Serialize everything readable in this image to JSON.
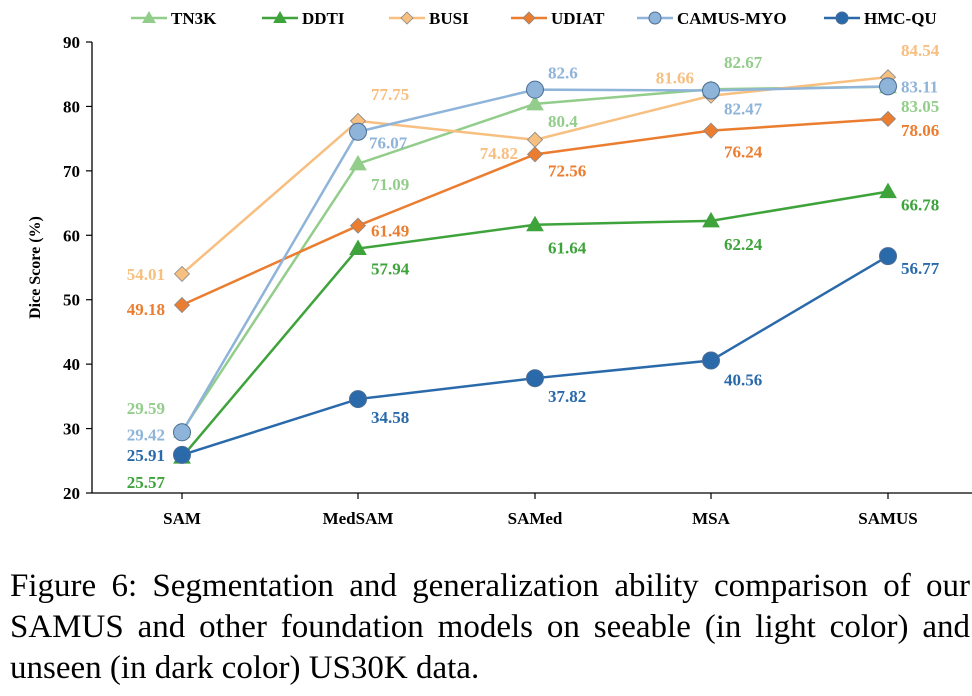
{
  "caption": "Figure 6: Segmentation and generalization ability comparison of our SAMUS and other foundation models on seeable (in light color) and unseen (in dark color) US30K data.",
  "chart_data": {
    "type": "line",
    "title": "",
    "xlabel": "",
    "ylabel": "Dice Score (%)",
    "ylim": [
      20,
      90
    ],
    "yticks": [
      20,
      30,
      40,
      50,
      60,
      70,
      80,
      90
    ],
    "grid": false,
    "legend_position": "top",
    "categories": [
      "SAM",
      "MedSAM",
      "SAMed",
      "MSA",
      "SAMUS"
    ],
    "series": [
      {
        "name": "TN3K",
        "color": "#93cd8b",
        "marker": "triangle",
        "values": [
          29.59,
          71.09,
          80.4,
          82.67,
          83.05
        ],
        "labels": [
          "29.59",
          "71.09",
          "80.4",
          "82.67",
          "83.05"
        ]
      },
      {
        "name": "DDTI",
        "color": "#3ea33b",
        "marker": "triangle",
        "values": [
          25.57,
          57.94,
          61.64,
          62.24,
          66.78
        ],
        "labels": [
          "25.57",
          "57.94",
          "61.64",
          "62.24",
          "66.78"
        ]
      },
      {
        "name": "BUSI",
        "color": "#f7bf80",
        "marker": "diamond",
        "values": [
          54.01,
          77.75,
          74.82,
          81.66,
          84.54
        ],
        "labels": [
          "54.01",
          "77.75",
          "74.82",
          "81.66",
          "84.54"
        ]
      },
      {
        "name": "UDIAT",
        "color": "#eb7d30",
        "marker": "diamond",
        "values": [
          49.18,
          61.49,
          72.56,
          76.24,
          78.06
        ],
        "labels": [
          "49.18",
          "61.49",
          "72.56",
          "76.24",
          "78.06"
        ]
      },
      {
        "name": "CAMUS-MYO",
        "color": "#8fb4da",
        "marker": "circle",
        "values": [
          29.42,
          76.07,
          82.6,
          82.47,
          83.11
        ],
        "labels": [
          "29.42",
          "76.07",
          "82.6",
          "82.47",
          "83.11"
        ]
      },
      {
        "name": "HMC-QU",
        "color": "#2a6aab",
        "marker": "circle",
        "values": [
          25.91,
          34.58,
          37.82,
          40.56,
          56.77
        ],
        "labels": [
          "25.91",
          "34.58",
          "37.82",
          "40.56",
          "56.77"
        ]
      }
    ]
  }
}
